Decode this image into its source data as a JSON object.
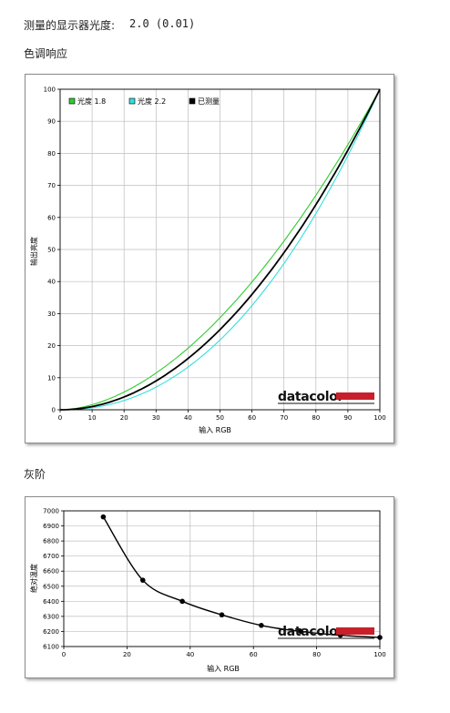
{
  "header": {
    "gamma_label": "测量的显示器光度:",
    "gamma_value": "2.0 (0.01)"
  },
  "sections": {
    "tone_title": "色调响应",
    "gray_title": "灰阶"
  },
  "brand": {
    "logo_text": "datacolor",
    "logo_color": "#c8202a"
  },
  "chart_data": [
    {
      "type": "line",
      "xlabel": "输入 RGB",
      "ylabel": "输出亮度",
      "xlim": [
        0,
        100
      ],
      "ylim": [
        0,
        100
      ],
      "grid": true,
      "legend": "top-left",
      "x_ticks": [
        0,
        10,
        20,
        30,
        40,
        50,
        60,
        70,
        80,
        90,
        100
      ],
      "y_ticks": [
        0,
        10,
        20,
        30,
        40,
        50,
        60,
        70,
        80,
        90,
        100
      ],
      "series": [
        {
          "name": "光度 1.8",
          "color": "#2fcc2f",
          "gamma": 1.8,
          "x": [
            0,
            10,
            20,
            30,
            40,
            50,
            60,
            70,
            80,
            90,
            100
          ],
          "y": [
            0,
            1.6,
            5.5,
            11.5,
            19.2,
            28.7,
            39.9,
            52.6,
            66.9,
            82.7,
            100
          ]
        },
        {
          "name": "光度 2.2",
          "color": "#33dede",
          "gamma": 2.2,
          "x": [
            0,
            10,
            20,
            30,
            40,
            50,
            60,
            70,
            80,
            90,
            100
          ],
          "y": [
            0,
            0.6,
            2.9,
            7.1,
            13.3,
            21.8,
            32.5,
            45.6,
            61.2,
            79.3,
            100
          ]
        },
        {
          "name": "已测量",
          "color": "#000000",
          "gamma": 2.0,
          "x": [
            0,
            10,
            20,
            30,
            40,
            50,
            60,
            70,
            80,
            90,
            100
          ],
          "y": [
            0,
            1.0,
            4.0,
            9.0,
            16.0,
            25.0,
            36.0,
            49.0,
            64.0,
            81.0,
            100
          ]
        }
      ]
    },
    {
      "type": "line",
      "xlabel": "输入 RGB",
      "ylabel": "绝对温度",
      "xlim": [
        0,
        100
      ],
      "ylim": [
        6100,
        7000
      ],
      "grid": true,
      "x_ticks": [
        0,
        20,
        40,
        60,
        80,
        100
      ],
      "y_ticks": [
        6100,
        6200,
        6300,
        6400,
        6500,
        6600,
        6700,
        6800,
        6900,
        7000
      ],
      "series": [
        {
          "color": "#000000",
          "x": [
            12.5,
            25,
            37.5,
            50,
            62.5,
            75,
            87.5,
            100
          ],
          "y": [
            6960,
            6540,
            6400,
            6310,
            6240,
            6200,
            6175,
            6160
          ]
        }
      ]
    }
  ]
}
